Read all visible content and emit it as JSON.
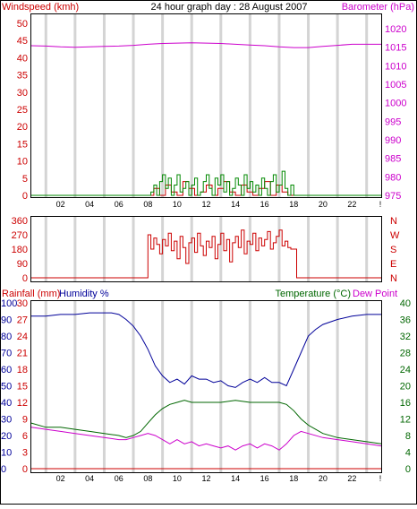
{
  "chart_data": [
    {
      "type": "line",
      "title": "24 hour graph day : 28 August 2007",
      "ylabel_left": "Windspeed (kmh)",
      "ylabel_right": "Barometer (hPa)",
      "x_ticks": [
        "02",
        "04",
        "06",
        "08",
        "10",
        "12",
        "14",
        "16",
        "18",
        "20",
        "22",
        "!"
      ],
      "x_range_hours": [
        0,
        24
      ],
      "ylim_left": [
        0,
        50
      ],
      "yticks_left": [
        "0",
        "5",
        "10",
        "15",
        "20",
        "25",
        "30",
        "35",
        "40",
        "45",
        "50"
      ],
      "ylim_right": [
        975,
        1020
      ],
      "yticks_right": [
        "975",
        "980",
        "985",
        "990",
        "995",
        "1000",
        "1005",
        "1010",
        "1015",
        "1020"
      ],
      "grid": "vertical",
      "series": [
        {
          "name": "Barometer (hPa)",
          "axis": "right",
          "color": "#cc00cc",
          "x": [
            0,
            1,
            2,
            3,
            4,
            5,
            6,
            7,
            8,
            9,
            10,
            11,
            12,
            13,
            14,
            15,
            16,
            17,
            18,
            19,
            20,
            21,
            22,
            23,
            24
          ],
          "values": [
            1015.4,
            1015.3,
            1015.1,
            1015.0,
            1015.1,
            1015.2,
            1015.3,
            1015.5,
            1015.8,
            1016.0,
            1016.1,
            1016.2,
            1016.1,
            1016.0,
            1015.8,
            1015.6,
            1015.4,
            1015.1,
            1014.9,
            1014.9,
            1015.2,
            1015.5,
            1015.8,
            1015.8,
            1015.8
          ]
        },
        {
          "name": "Windspeed",
          "axis": "left",
          "color": "#008800",
          "x": [
            0,
            7.9,
            8.2,
            8.4,
            8.6,
            8.8,
            9.0,
            9.2,
            9.4,
            9.6,
            9.8,
            10.0,
            10.2,
            10.4,
            10.6,
            10.8,
            11.0,
            11.2,
            11.4,
            11.6,
            11.8,
            12.0,
            12.2,
            12.4,
            12.6,
            12.8,
            13.0,
            13.2,
            13.4,
            13.6,
            13.8,
            14.0,
            14.2,
            14.4,
            14.6,
            14.8,
            15.0,
            15.2,
            15.4,
            15.6,
            15.8,
            16.0,
            16.2,
            16.4,
            16.6,
            16.8,
            17.0,
            17.2,
            17.4,
            17.6,
            17.8,
            18.0,
            24
          ],
          "values": [
            0,
            0,
            1,
            3,
            0,
            4,
            6,
            2,
            5,
            0,
            3,
            6,
            1,
            2,
            4,
            0,
            3,
            5,
            0,
            1,
            4,
            6,
            2,
            0,
            5,
            3,
            6,
            1,
            4,
            0,
            2,
            5,
            3,
            0,
            6,
            2,
            4,
            1,
            3,
            0,
            5,
            2,
            0,
            4,
            6,
            1,
            3,
            7,
            2,
            0,
            3,
            0,
            0
          ]
        },
        {
          "name": "Wind gust",
          "axis": "left",
          "color": "#cc0000",
          "x": [
            0,
            8.0,
            8.4,
            8.8,
            9.2,
            9.6,
            10.0,
            10.4,
            10.8,
            11.2,
            11.6,
            12.0,
            12.4,
            12.8,
            13.2,
            13.6,
            14.0,
            14.4,
            14.8,
            15.2,
            15.6,
            16.0,
            16.4,
            16.8,
            17.2,
            17.6,
            18.0,
            24
          ],
          "values": [
            0,
            0,
            2,
            0,
            3,
            1,
            0,
            4,
            2,
            0,
            1,
            3,
            0,
            2,
            4,
            1,
            0,
            3,
            1,
            0,
            2,
            4,
            0,
            3,
            1,
            0,
            0,
            0
          ]
        }
      ]
    },
    {
      "type": "line",
      "title": "",
      "ylim_left": [
        0,
        360
      ],
      "yticks_left": [
        "0",
        "90",
        "180",
        "270",
        "360"
      ],
      "yticks_right": [
        "N",
        "E",
        "S",
        "W",
        "N"
      ],
      "x_range_hours": [
        0,
        24
      ],
      "series": [
        {
          "name": "Wind direction",
          "axis": "left",
          "color": "#cc0000",
          "x": [
            0,
            8.0,
            8.0,
            8.2,
            8.4,
            8.6,
            8.8,
            9.0,
            9.2,
            9.4,
            9.6,
            9.8,
            10.0,
            10.2,
            10.4,
            10.6,
            10.8,
            11.0,
            11.2,
            11.4,
            11.6,
            11.8,
            12.0,
            12.2,
            12.4,
            12.6,
            12.8,
            13.0,
            13.2,
            13.4,
            13.6,
            13.8,
            14.0,
            14.2,
            14.4,
            14.6,
            14.8,
            15.0,
            15.2,
            15.4,
            15.6,
            15.8,
            16.0,
            16.2,
            16.4,
            16.6,
            16.8,
            17.0,
            17.2,
            17.4,
            17.6,
            17.8,
            18.0,
            18.2,
            18.2,
            24
          ],
          "values": [
            0,
            0,
            270,
            180,
            250,
            210,
            150,
            240,
            200,
            280,
            170,
            230,
            120,
            260,
            190,
            90,
            220,
            250,
            160,
            280,
            200,
            140,
            230,
            190,
            260,
            120,
            210,
            280,
            170,
            240,
            100,
            220,
            260,
            190,
            300,
            150,
            230,
            210,
            280,
            170,
            250,
            200,
            240,
            290,
            180,
            220,
            260,
            300,
            200,
            230,
            190,
            180,
            180,
            180,
            0,
            0
          ]
        }
      ]
    },
    {
      "type": "line",
      "title": "",
      "labels": [
        "Rainfall (mm)",
        "Humidity %",
        "Temperature (°C)",
        "Dew Point"
      ],
      "yticks_humidity": [
        "0",
        "10",
        "20",
        "30",
        "40",
        "50",
        "60",
        "70",
        "80",
        "90",
        "100"
      ],
      "ylim_humidity": [
        0,
        100
      ],
      "yticks_rain": [
        "0",
        "3",
        "6",
        "9",
        "12",
        "15",
        "18",
        "21",
        "24",
        "27",
        "30"
      ],
      "ylim_rain": [
        0,
        30
      ],
      "yticks_temp": [
        "0",
        "4",
        "8",
        "12",
        "16",
        "20",
        "24",
        "28",
        "32",
        "36",
        "40"
      ],
      "ylim_temp": [
        0,
        40
      ],
      "x_range_hours": [
        0,
        24
      ],
      "series": [
        {
          "name": "Humidity %",
          "axis": "humidity",
          "color": "#000099",
          "x": [
            0,
            1,
            2,
            3,
            4,
            5,
            5.5,
            6,
            6.5,
            7,
            7.5,
            8,
            8.5,
            9,
            9.5,
            10,
            10.5,
            11,
            11.5,
            12,
            12.5,
            13,
            13.5,
            14,
            14.5,
            15,
            15.5,
            16,
            16.5,
            17,
            17.5,
            18,
            18.5,
            19,
            19.5,
            20,
            21,
            22,
            23,
            24
          ],
          "values": [
            92,
            92,
            93,
            93,
            94,
            94,
            94,
            93,
            90,
            86,
            80,
            72,
            62,
            56,
            52,
            54,
            51,
            56,
            54,
            54,
            52,
            53,
            50,
            49,
            52,
            54,
            52,
            55,
            52,
            52,
            50,
            60,
            70,
            80,
            84,
            87,
            90,
            92,
            93,
            93
          ]
        },
        {
          "name": "Temperature (°C)",
          "axis": "temp",
          "color": "#006600",
          "x": [
            0,
            1,
            2,
            3,
            4,
            5,
            6,
            6.5,
            7,
            7.5,
            8,
            8.5,
            9,
            9.5,
            10,
            10.5,
            11,
            12,
            13,
            14,
            15,
            16,
            17,
            17.5,
            18,
            18.5,
            19,
            19.5,
            20,
            21,
            22,
            23,
            24
          ],
          "values": [
            11,
            10,
            10,
            9.5,
            9,
            8.5,
            8,
            7.5,
            8,
            9,
            11,
            13,
            14.5,
            15.5,
            16,
            16.5,
            16,
            16,
            16,
            16.5,
            16,
            16,
            16,
            15.5,
            14,
            12,
            10.5,
            9.5,
            8.5,
            7.5,
            7,
            6.5,
            6
          ]
        },
        {
          "name": "Dew Point",
          "axis": "temp",
          "color": "#cc00cc",
          "x": [
            0,
            1,
            2,
            3,
            4,
            5,
            6,
            6.5,
            7,
            7.5,
            8,
            8.5,
            9,
            9.5,
            10,
            10.5,
            11,
            11.5,
            12,
            12.5,
            13,
            13.5,
            14,
            14.5,
            15,
            15.5,
            16,
            16.5,
            17,
            17.5,
            18,
            18.5,
            19,
            20,
            21,
            22,
            23,
            24
          ],
          "values": [
            10,
            9.5,
            9,
            8.5,
            8,
            7.5,
            7,
            7,
            7.5,
            8,
            8.5,
            8,
            7,
            6,
            7,
            6,
            6.5,
            5.5,
            6,
            5.5,
            5,
            5.5,
            4.5,
            5.5,
            6,
            5,
            6,
            5.5,
            4.5,
            6,
            8,
            9,
            8.5,
            7.5,
            7,
            6.5,
            6,
            5.5
          ]
        },
        {
          "name": "Rainfall (mm)",
          "axis": "rain",
          "color": "#cc0000",
          "x": [
            0,
            24
          ],
          "values": [
            0,
            0
          ]
        }
      ]
    }
  ]
}
